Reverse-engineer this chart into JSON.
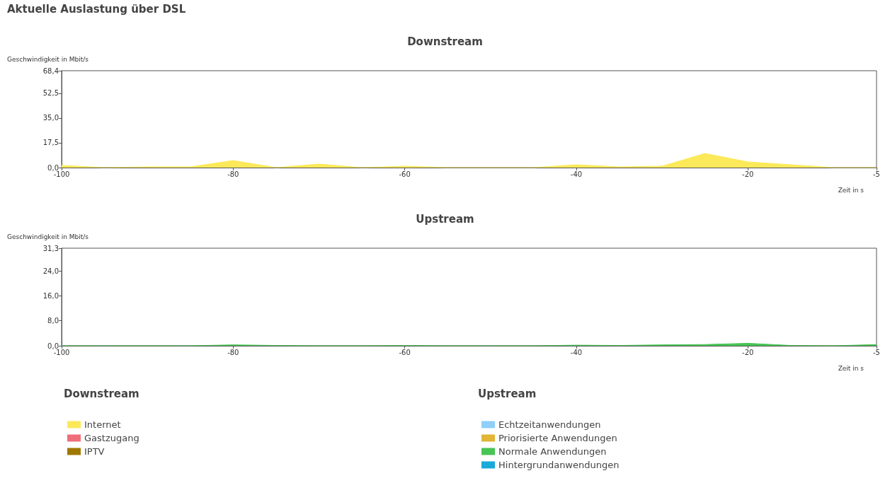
{
  "chart_data": [
    {
      "type": "area",
      "title": "Downstream",
      "annotations": [
        "Aktuelle Auslastung über DSL"
      ],
      "xlabel": "Zeit in s",
      "ylabel": "Geschwindigkeit in Mbit/s",
      "legend_title": "Downstream",
      "legend": "bottom left",
      "grid": false,
      "marker": "none",
      "x": [
        -100,
        -95,
        -90,
        -85,
        -80,
        -75,
        -70,
        -65,
        -60,
        -55,
        -50,
        -45,
        -40,
        -35,
        -30,
        -25,
        -20,
        -15,
        -10,
        -5
      ],
      "xlim": [
        -100,
        -5
      ],
      "xticks": [
        -100,
        -80,
        -60,
        -40,
        -20,
        -5
      ],
      "ylim": [
        0,
        68.4
      ],
      "yticks": [
        {
          "value": 0,
          "label": "0,0"
        },
        {
          "value": 17.5,
          "label": "17,5"
        },
        {
          "value": 35,
          "label": "35,0"
        },
        {
          "value": 52.5,
          "label": "52,5"
        },
        {
          "value": 68.4,
          "label": "68,4"
        }
      ],
      "series": [
        {
          "name": "Internet",
          "color": "#fbe95a",
          "values": [
            1.5,
            0,
            0.5,
            0.5,
            5,
            0,
            2.5,
            0,
            1,
            0,
            0,
            0,
            2,
            0.5,
            1,
            10,
            4,
            2,
            0,
            0
          ]
        },
        {
          "name": "Gastzugang",
          "color": "#ee6e7a",
          "values": [
            null,
            null,
            null,
            null,
            null,
            null,
            null,
            null,
            null,
            null,
            null,
            null,
            null,
            null,
            null,
            null,
            null,
            null,
            null,
            null
          ]
        },
        {
          "name": "IPTV",
          "color": "#a07800",
          "values": [
            null,
            null,
            null,
            null,
            null,
            null,
            null,
            null,
            null,
            null,
            null,
            null,
            null,
            null,
            null,
            null,
            null,
            null,
            null,
            null
          ]
        }
      ]
    },
    {
      "type": "area",
      "title": "Upstream",
      "xlabel": "Zeit in s",
      "ylabel": "Geschwindigkeit in Mbit/s",
      "legend_title": "Upstream",
      "legend": "bottom right",
      "grid": false,
      "marker": "none",
      "x": [
        -100,
        -95,
        -90,
        -85,
        -80,
        -75,
        -70,
        -65,
        -60,
        -55,
        -50,
        -45,
        -40,
        -35,
        -30,
        -25,
        -20,
        -15,
        -10,
        -5
      ],
      "xlim": [
        -100,
        -5
      ],
      "xticks": [
        -100,
        -80,
        -60,
        -40,
        -20,
        -5
      ],
      "ylim": [
        0,
        31.3
      ],
      "yticks": [
        {
          "value": 0,
          "label": "0,0"
        },
        {
          "value": 8,
          "label": "8,0"
        },
        {
          "value": 16,
          "label": "16,0"
        },
        {
          "value": 24,
          "label": "24,0"
        },
        {
          "value": 31.3,
          "label": "31,3"
        }
      ],
      "series": [
        {
          "name": "Echtzeitanwendungen",
          "color": "#8fcff9",
          "values": [
            null,
            null,
            null,
            null,
            null,
            null,
            null,
            null,
            null,
            null,
            null,
            null,
            null,
            null,
            null,
            null,
            null,
            null,
            null,
            null
          ]
        },
        {
          "name": "Priorisierte Anwendungen",
          "color": "#e3b535",
          "values": [
            null,
            null,
            null,
            null,
            null,
            null,
            null,
            null,
            null,
            null,
            null,
            null,
            null,
            null,
            null,
            null,
            null,
            null,
            null,
            null
          ]
        },
        {
          "name": "Normale Anwendungen",
          "color": "#48c454",
          "values": [
            0,
            0,
            0,
            0,
            0.3,
            0.1,
            0,
            0,
            0.1,
            0,
            0,
            0,
            0.2,
            0.1,
            0.3,
            0.4,
            0.8,
            0.1,
            0,
            0.4
          ]
        },
        {
          "name": "Hintergrundanwendungen",
          "color": "#1aa9d8",
          "values": [
            null,
            null,
            null,
            null,
            null,
            null,
            null,
            null,
            null,
            null,
            null,
            null,
            null,
            null,
            null,
            null,
            null,
            null,
            null,
            null
          ]
        }
      ]
    }
  ]
}
